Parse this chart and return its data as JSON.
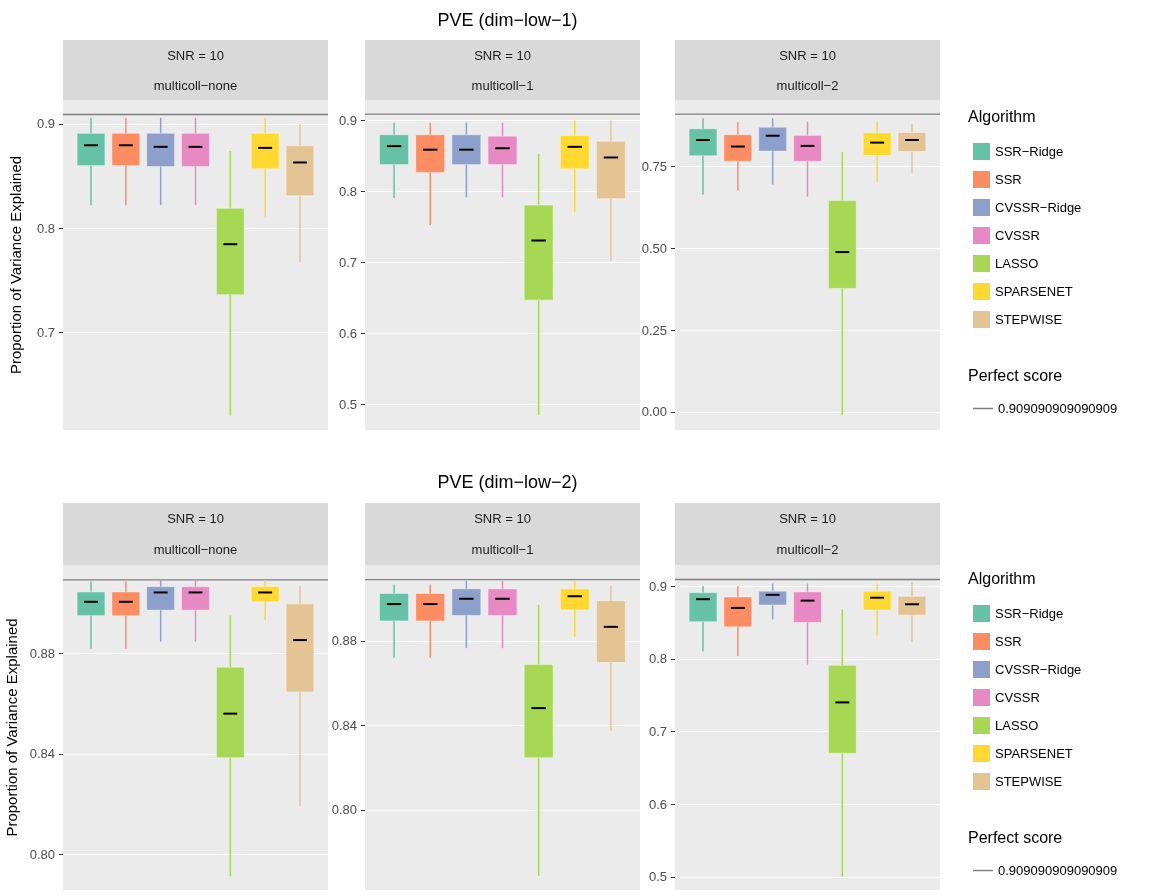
{
  "chart_data": [
    {
      "type": "box",
      "annotations": [
        "SNR = 10",
        "multicoll−none"
      ],
      "ylabel": "Proportion of Variance Explained",
      "categories": [
        null
      ],
      "tick_labels": "y",
      "grid": "y",
      "legend": false,
      "ylim": [
        0.606,
        0.923
      ],
      "yticks": [
        0.7,
        0.8,
        0.9
      ],
      "ref_lines": [
        {
          "axis": "y",
          "value": 0.909090909090909,
          "color": "#7f7f7f"
        }
      ],
      "series": [
        {
          "color": "#66c2a5",
          "boxes": [
            {
              "low": 0.822,
              "q1": 0.86,
              "median": 0.8795,
              "q3": 0.891,
              "high": 0.906
            }
          ]
        },
        {
          "color": "#fc8d62",
          "boxes": [
            {
              "low": 0.822,
              "q1": 0.86,
              "median": 0.8795,
              "q3": 0.891,
              "high": 0.906
            }
          ]
        },
        {
          "color": "#8da0cb",
          "boxes": [
            {
              "low": 0.822,
              "q1": 0.859,
              "median": 0.878,
              "q3": 0.891,
              "high": 0.906
            }
          ]
        },
        {
          "color": "#e78ac3",
          "boxes": [
            {
              "low": 0.822,
              "q1": 0.859,
              "median": 0.878,
              "q3": 0.891,
              "high": 0.906
            }
          ]
        },
        {
          "color": "#a6d854",
          "boxes": [
            {
              "low": 0.62,
              "q1": 0.736,
              "median": 0.7845,
              "q3": 0.819,
              "high": 0.874
            }
          ]
        },
        {
          "color": "#ffd92f",
          "boxes": [
            {
              "low": 0.811,
              "q1": 0.857,
              "median": 0.877,
              "q3": 0.891,
              "high": 0.906
            }
          ]
        },
        {
          "color": "#e5c494",
          "boxes": [
            {
              "low": 0.767,
              "q1": 0.831,
              "median": 0.863,
              "q3": 0.879,
              "high": 0.9
            }
          ]
        }
      ]
    },
    {
      "type": "box",
      "title": "PVE (dim−low−1)",
      "annotations": [
        "SNR = 10",
        "multicoll−1"
      ],
      "categories": [
        null
      ],
      "tick_labels": "y",
      "grid": "y",
      "legend": false,
      "ylim": [
        0.464,
        0.929
      ],
      "yticks": [
        0.5,
        0.6,
        0.7,
        0.8,
        0.9
      ],
      "ref_lines": [
        {
          "axis": "y",
          "value": 0.909090909090909,
          "color": "#7f7f7f"
        }
      ],
      "series": [
        {
          "color": "#66c2a5",
          "boxes": [
            {
              "low": 0.791,
              "q1": 0.838,
              "median": 0.864,
              "q3": 0.88,
              "high": 0.897
            }
          ]
        },
        {
          "color": "#fc8d62",
          "boxes": [
            {
              "low": 0.753,
              "q1": 0.827,
              "median": 0.859,
              "q3": 0.88,
              "high": 0.897
            }
          ]
        },
        {
          "color": "#8da0cb",
          "boxes": [
            {
              "low": 0.792,
              "q1": 0.838,
              "median": 0.859,
              "q3": 0.88,
              "high": 0.897
            }
          ]
        },
        {
          "color": "#e78ac3",
          "boxes": [
            {
              "low": 0.792,
              "q1": 0.838,
              "median": 0.861,
              "q3": 0.878,
              "high": 0.897
            }
          ]
        },
        {
          "color": "#a6d854",
          "boxes": [
            {
              "low": 0.485,
              "q1": 0.647,
              "median": 0.731,
              "q3": 0.781,
              "high": 0.853
            }
          ]
        },
        {
          "color": "#ffd92f",
          "boxes": [
            {
              "low": 0.771,
              "q1": 0.832,
              "median": 0.863,
              "q3": 0.879,
              "high": 0.9
            }
          ]
        },
        {
          "color": "#e5c494",
          "boxes": [
            {
              "low": 0.702,
              "q1": 0.79,
              "median": 0.848,
              "q3": 0.871,
              "high": 0.9
            }
          ]
        }
      ]
    },
    {
      "type": "box",
      "annotations": [
        "SNR = 10",
        "multicoll−2",
        "Perfect score"
      ],
      "categories": [
        null
      ],
      "tick_labels": "y",
      "grid": "y",
      "legend": "right",
      "legend_title": "Algorithm",
      "ylim": [
        -0.055,
        0.952
      ],
      "yticks": [
        {
          "value": 0,
          "label": "0.00"
        },
        {
          "value": 0.25,
          "label": "0.25"
        },
        {
          "value": 0.5,
          "label": "0.50"
        },
        {
          "value": 0.75,
          "label": "0.75"
        }
      ],
      "ref_lines": [
        {
          "axis": "y",
          "value": 0.909090909090909,
          "label": "0.909090909090909",
          "color": "#7f7f7f"
        }
      ],
      "series": [
        {
          "name": "SSR−Ridge",
          "color": "#66c2a5",
          "boxes": [
            {
              "low": 0.664,
              "q1": 0.782,
              "median": 0.83,
              "q3": 0.864,
              "high": 0.896
            }
          ]
        },
        {
          "name": "SSR",
          "color": "#fc8d62",
          "boxes": [
            {
              "low": 0.676,
              "q1": 0.765,
              "median": 0.81,
              "q3": 0.846,
              "high": 0.884
            }
          ]
        },
        {
          "name": "CVSSR−Ridge",
          "color": "#8da0cb",
          "boxes": [
            {
              "low": 0.694,
              "q1": 0.796,
              "median": 0.843,
              "q3": 0.869,
              "high": 0.896
            }
          ]
        },
        {
          "name": "CVSSR",
          "color": "#e78ac3",
          "boxes": [
            {
              "low": 0.657,
              "q1": 0.765,
              "median": 0.812,
              "q3": 0.844,
              "high": 0.886
            }
          ]
        },
        {
          "name": "LASSO",
          "color": "#a6d854",
          "boxes": [
            {
              "low": -0.009,
              "q1": 0.377,
              "median": 0.488,
              "q3": 0.645,
              "high": 0.793
            }
          ]
        },
        {
          "name": "SPARSENET",
          "color": "#ffd92f",
          "boxes": [
            {
              "low": 0.701,
              "q1": 0.783,
              "median": 0.822,
              "q3": 0.852,
              "high": 0.889
            }
          ]
        },
        {
          "name": "STEPWISE",
          "color": "#e5c494",
          "boxes": [
            {
              "low": 0.73,
              "q1": 0.795,
              "median": 0.83,
              "q3": 0.853,
              "high": 0.878
            }
          ]
        }
      ]
    },
    {
      "type": "box",
      "annotations": [
        "SNR = 10",
        "multicoll−none"
      ],
      "ylabel": "Proportion of Variance Explained",
      "categories": [
        null
      ],
      "tick_labels": "y",
      "grid": "y",
      "legend": false,
      "ylim": [
        0.786,
        0.915
      ],
      "yticks": [
        {
          "value": 0.8,
          "label": "0.80"
        },
        {
          "value": 0.84,
          "label": "0.84"
        },
        {
          "value": 0.88,
          "label": "0.88"
        }
      ],
      "ref_lines": [
        {
          "axis": "y",
          "value": 0.909090909090909,
          "color": "#7f7f7f"
        }
      ],
      "series": [
        {
          "color": "#66c2a5",
          "boxes": [
            {
              "low": 0.8818,
              "q1": 0.8949,
              "median": 0.9004,
              "q3": 0.9043,
              "high": 0.9085
            }
          ]
        },
        {
          "color": "#fc8d62",
          "boxes": [
            {
              "low": 0.8818,
              "q1": 0.8949,
              "median": 0.9004,
              "q3": 0.9043,
              "high": 0.9085
            }
          ]
        },
        {
          "color": "#8da0cb",
          "boxes": [
            {
              "low": 0.8846,
              "q1": 0.8971,
              "median": 0.9041,
              "q3": 0.9064,
              "high": 0.909
            }
          ]
        },
        {
          "color": "#e78ac3",
          "boxes": [
            {
              "low": 0.8846,
              "q1": 0.8971,
              "median": 0.9041,
              "q3": 0.9064,
              "high": 0.909
            }
          ]
        },
        {
          "color": "#a6d854",
          "boxes": [
            {
              "low": 0.7915,
              "q1": 0.8385,
              "median": 0.856,
              "q3": 0.8744,
              "high": 0.895
            }
          ]
        },
        {
          "color": "#ffd92f",
          "boxes": [
            {
              "low": 0.8931,
              "q1": 0.9004,
              "median": 0.9041,
              "q3": 0.9065,
              "high": 0.909
            }
          ]
        },
        {
          "color": "#e5c494",
          "boxes": [
            {
              "low": 0.8193,
              "q1": 0.8646,
              "median": 0.8852,
              "q3": 0.8996,
              "high": 0.9066
            }
          ]
        }
      ]
    },
    {
      "type": "box",
      "title": "PVE (dim−low−2)",
      "annotations": [
        "SNR = 10",
        "multicoll−1"
      ],
      "categories": [
        null
      ],
      "tick_labels": "y",
      "grid": "y",
      "legend": false,
      "ylim": [
        0.762,
        0.916
      ],
      "yticks": [
        {
          "value": 0.8,
          "label": "0.80"
        },
        {
          "value": 0.84,
          "label": "0.84"
        },
        {
          "value": 0.88,
          "label": "0.88"
        }
      ],
      "ref_lines": [
        {
          "axis": "y",
          "value": 0.909090909090909,
          "color": "#7f7f7f"
        }
      ],
      "series": [
        {
          "color": "#66c2a5",
          "boxes": [
            {
              "low": 0.8721,
              "q1": 0.8895,
              "median": 0.8975,
              "q3": 0.9025,
              "high": 0.9068
            }
          ]
        },
        {
          "color": "#fc8d62",
          "boxes": [
            {
              "low": 0.8721,
              "q1": 0.8895,
              "median": 0.8975,
              "q3": 0.9025,
              "high": 0.9068
            }
          ]
        },
        {
          "color": "#8da0cb",
          "boxes": [
            {
              "low": 0.8766,
              "q1": 0.8921,
              "median": 0.9,
              "q3": 0.9047,
              "high": 0.9084
            }
          ]
        },
        {
          "color": "#e78ac3",
          "boxes": [
            {
              "low": 0.8766,
              "q1": 0.8921,
              "median": 0.9,
              "q3": 0.9047,
              "high": 0.9084
            }
          ]
        },
        {
          "color": "#a6d854",
          "boxes": [
            {
              "low": 0.7688,
              "q1": 0.8247,
              "median": 0.8482,
              "q3": 0.8688,
              "high": 0.8972
            }
          ]
        },
        {
          "color": "#ffd92f",
          "boxes": [
            {
              "low": 0.882,
              "q1": 0.8947,
              "median": 0.9012,
              "q3": 0.9047,
              "high": 0.9084
            }
          ]
        },
        {
          "color": "#e5c494",
          "boxes": [
            {
              "low": 0.8375,
              "q1": 0.8698,
              "median": 0.8867,
              "q3": 0.8991,
              "high": 0.906
            }
          ]
        }
      ]
    },
    {
      "type": "box",
      "annotations": [
        "SNR = 10",
        "multicoll−2",
        "Perfect score"
      ],
      "categories": [
        null
      ],
      "tick_labels": "y",
      "grid": "y",
      "legend": "right",
      "legend_title": "Algorithm",
      "ylim": [
        0.482,
        0.929
      ],
      "yticks": [
        0.5,
        0.6,
        0.7,
        0.8,
        0.9
      ],
      "ref_lines": [
        {
          "axis": "y",
          "value": 0.909090909090909,
          "label": "0.909090909090909",
          "color": "#7f7f7f"
        }
      ],
      "series": [
        {
          "name": "SSR−Ridge",
          "color": "#66c2a5",
          "boxes": [
            {
              "low": 0.81,
              "q1": 0.851,
              "median": 0.882,
              "q3": 0.891,
              "high": 0.9
            }
          ]
        },
        {
          "name": "SSR",
          "color": "#fc8d62",
          "boxes": [
            {
              "low": 0.804,
              "q1": 0.844,
              "median": 0.87,
              "q3": 0.885,
              "high": 0.9
            }
          ]
        },
        {
          "name": "CVSSR−Ridge",
          "color": "#8da0cb",
          "boxes": [
            {
              "low": 0.854,
              "q1": 0.874,
              "median": 0.888,
              "q3": 0.893,
              "high": 0.9036
            }
          ]
        },
        {
          "name": "CVSSR",
          "color": "#e78ac3",
          "boxes": [
            {
              "low": 0.792,
              "q1": 0.85,
              "median": 0.88,
              "q3": 0.892,
              "high": 0.9036
            }
          ]
        },
        {
          "name": "LASSO",
          "color": "#a6d854",
          "boxes": [
            {
              "low": 0.501,
              "q1": 0.67,
              "median": 0.74,
              "q3": 0.791,
              "high": 0.868
            }
          ]
        },
        {
          "name": "SPARSENET",
          "color": "#ffd92f",
          "boxes": [
            {
              "low": 0.832,
              "q1": 0.867,
              "median": 0.884,
              "q3": 0.893,
              "high": 0.9036
            }
          ]
        },
        {
          "name": "STEPWISE",
          "color": "#e5c494",
          "boxes": [
            {
              "low": 0.823,
              "q1": 0.86,
              "median": 0.875,
              "q3": 0.886,
              "high": 0.905
            }
          ]
        }
      ]
    }
  ]
}
